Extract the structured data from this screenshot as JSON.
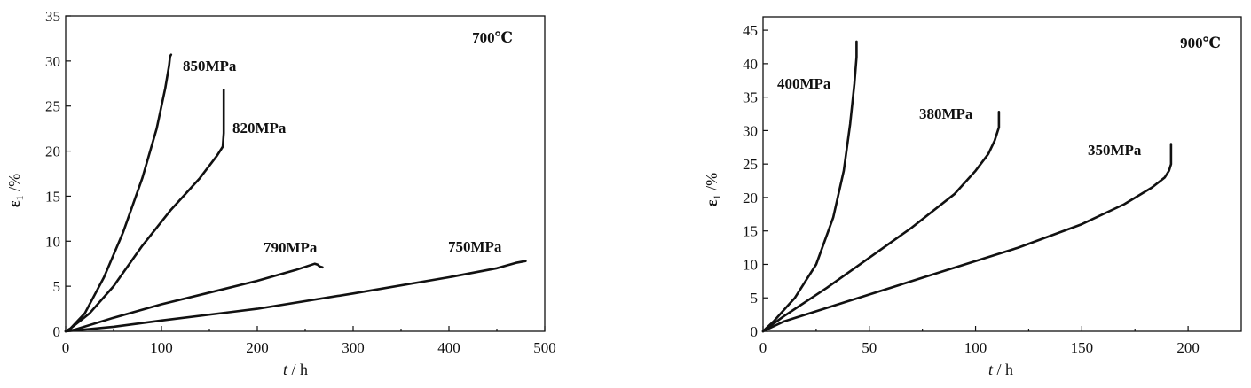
{
  "chart_data": [
    {
      "type": "line",
      "annotation": "700℃",
      "xlabel_italic": "t",
      "xlabel_rest": " / h",
      "ylabel_main": "ε",
      "ylabel_sub": "1",
      "ylabel_rest": " /%",
      "xlim": [
        0,
        500
      ],
      "ylim": [
        0,
        35
      ],
      "xticks": [
        0,
        100,
        200,
        300,
        400,
        500
      ],
      "yticks": [
        0,
        5,
        10,
        15,
        20,
        25,
        30,
        35
      ],
      "grid": false,
      "series": [
        {
          "name": "850MPa",
          "x": [
            0,
            5,
            20,
            40,
            60,
            80,
            95,
            104,
            108,
            109,
            110,
            110
          ],
          "y": [
            0,
            0.3,
            2,
            6,
            11,
            17,
            22.5,
            27,
            29.5,
            30.5,
            30.7,
            30.7
          ]
        },
        {
          "name": "820MPa",
          "x": [
            0,
            5,
            25,
            50,
            80,
            110,
            140,
            158,
            164,
            165,
            165
          ],
          "y": [
            0,
            0.3,
            2,
            5,
            9.5,
            13.5,
            17,
            19.5,
            20.5,
            22,
            26.8
          ]
        },
        {
          "name": "790MPa",
          "x": [
            0,
            10,
            50,
            100,
            150,
            200,
            240,
            260,
            263,
            265,
            268
          ],
          "y": [
            0,
            0.2,
            1.5,
            3,
            4.3,
            5.6,
            6.8,
            7.5,
            7.4,
            7.2,
            7.1
          ]
        },
        {
          "name": "750MPa",
          "x": [
            0,
            10,
            50,
            100,
            200,
            300,
            400,
            450,
            470,
            480
          ],
          "y": [
            0,
            0.1,
            0.5,
            1.2,
            2.5,
            4.2,
            6.0,
            7.0,
            7.6,
            7.8
          ]
        }
      ]
    },
    {
      "type": "line",
      "annotation": "900℃",
      "xlabel_italic": "t",
      "xlabel_rest": " / h",
      "ylabel_main": "ε",
      "ylabel_sub": "1",
      "ylabel_rest": " /%",
      "xlim": [
        0,
        225
      ],
      "ylim": [
        0,
        47
      ],
      "xticks": [
        0,
        50,
        100,
        150,
        200
      ],
      "yticks": [
        0,
        5,
        10,
        15,
        20,
        25,
        30,
        35,
        40,
        45
      ],
      "grid": false,
      "series": [
        {
          "name": "400MPa",
          "x": [
            0,
            5,
            15,
            25,
            33,
            38,
            41,
            43,
            44,
            44
          ],
          "y": [
            0,
            1.5,
            5,
            10,
            17,
            24,
            31,
            37,
            41,
            43.3
          ]
        },
        {
          "name": "380MPa",
          "x": [
            0,
            10,
            30,
            50,
            70,
            90,
            100,
            106,
            109,
            110,
            111,
            111
          ],
          "y": [
            0,
            2.3,
            6.5,
            11,
            15.5,
            20.5,
            24,
            26.5,
            28.5,
            29.5,
            30.5,
            32.8
          ]
        },
        {
          "name": "350MPa",
          "x": [
            0,
            10,
            40,
            80,
            120,
            150,
            170,
            183,
            189,
            191,
            192,
            192
          ],
          "y": [
            0,
            1.5,
            4.5,
            8.5,
            12.5,
            16,
            19,
            21.5,
            23,
            24,
            25,
            28
          ]
        }
      ]
    }
  ]
}
